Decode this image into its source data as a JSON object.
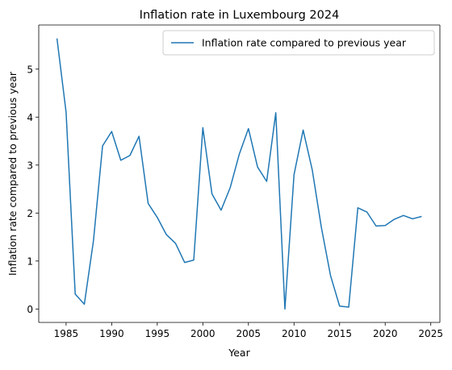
{
  "chart_data": {
    "type": "line",
    "title": "Inflation rate in Luxembourg 2024",
    "xlabel": "Year",
    "ylabel": "Inflation rate compared to previous year",
    "xlim": [
      1982,
      2026
    ],
    "ylim": [
      -0.28,
      5.92
    ],
    "xticks": [
      1985,
      1990,
      1995,
      2000,
      2005,
      2010,
      2015,
      2020,
      2025
    ],
    "yticks": [
      0,
      1,
      2,
      3,
      4,
      5
    ],
    "grid": false,
    "legend_position": "top-right",
    "series": [
      {
        "name": "Inflation rate compared to previous year",
        "color": "#1f77b4",
        "x": [
          1984,
          1985,
          1986,
          1987,
          1988,
          1989,
          1990,
          1991,
          1992,
          1993,
          1994,
          1995,
          1996,
          1997,
          1998,
          1999,
          2000,
          2001,
          2002,
          2003,
          2004,
          2005,
          2006,
          2007,
          2008,
          2009,
          2010,
          2011,
          2012,
          2013,
          2014,
          2015,
          2016,
          2017,
          2018,
          2019,
          2020,
          2021,
          2022,
          2023,
          2024
        ],
        "y": [
          5.64,
          4.1,
          0.31,
          0.1,
          1.42,
          3.4,
          3.7,
          3.1,
          3.2,
          3.6,
          2.2,
          1.91,
          1.55,
          1.37,
          0.97,
          1.02,
          3.78,
          2.4,
          2.06,
          2.53,
          3.23,
          3.76,
          2.96,
          2.66,
          4.09,
          0.0,
          2.8,
          3.73,
          2.9,
          1.7,
          0.7,
          0.06,
          0.04,
          2.11,
          2.02,
          1.73,
          1.74,
          1.87,
          1.95,
          1.88,
          1.93
        ]
      }
    ]
  }
}
